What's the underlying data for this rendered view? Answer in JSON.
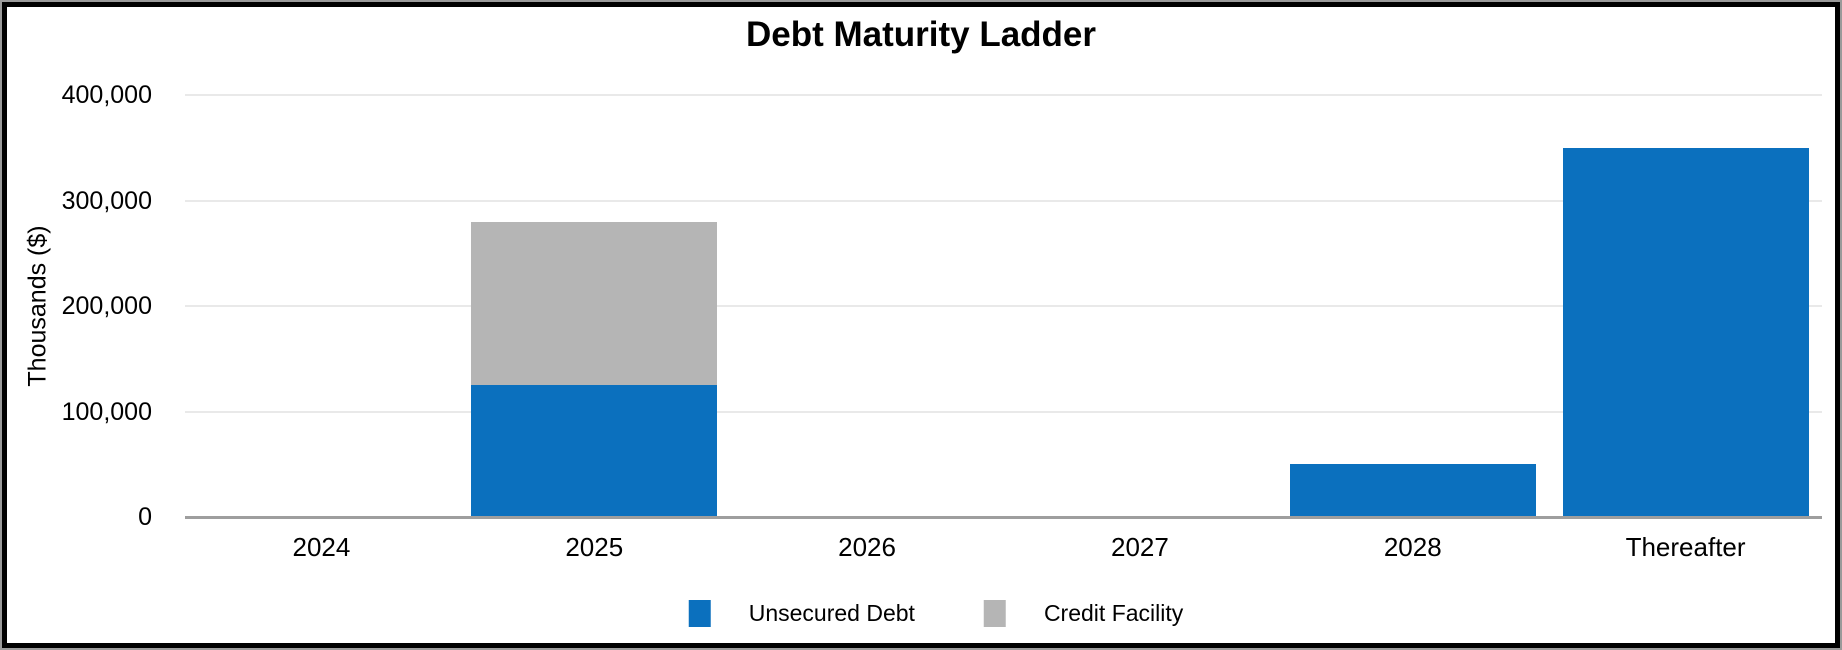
{
  "title": "Debt Maturity Ladder",
  "colors": {
    "unsecured_debt": "#0B70BE",
    "credit_facility": "#B5B5B5",
    "gridline": "#E9E9E9",
    "axis_line": "#9E9E9E",
    "text": "#000000",
    "frame_border": "#000000"
  },
  "chart_data": {
    "type": "bar",
    "stacked": true,
    "title": "Debt Maturity Ladder",
    "xlabel": "",
    "ylabel": "Thousands ($)",
    "categories": [
      "2024",
      "2025",
      "2026",
      "2027",
      "2028",
      "Thereafter"
    ],
    "series": [
      {
        "name": "Unsecured Debt",
        "color": "#0B70BE",
        "values": [
          0,
          125000,
          0,
          0,
          50000,
          350000
        ]
      },
      {
        "name": "Credit Facility",
        "color": "#B5B5B5",
        "values": [
          0,
          155000,
          0,
          0,
          0,
          0
        ]
      }
    ],
    "ylim": [
      0,
      400000
    ],
    "yticks": [
      {
        "value": 0,
        "label": "0"
      },
      {
        "value": 100000,
        "label": "100,000"
      },
      {
        "value": 200000,
        "label": "200,000"
      },
      {
        "value": 300000,
        "label": "300,000"
      },
      {
        "value": 400000,
        "label": "400,000"
      }
    ],
    "grid": true,
    "legend_position": "bottom"
  }
}
